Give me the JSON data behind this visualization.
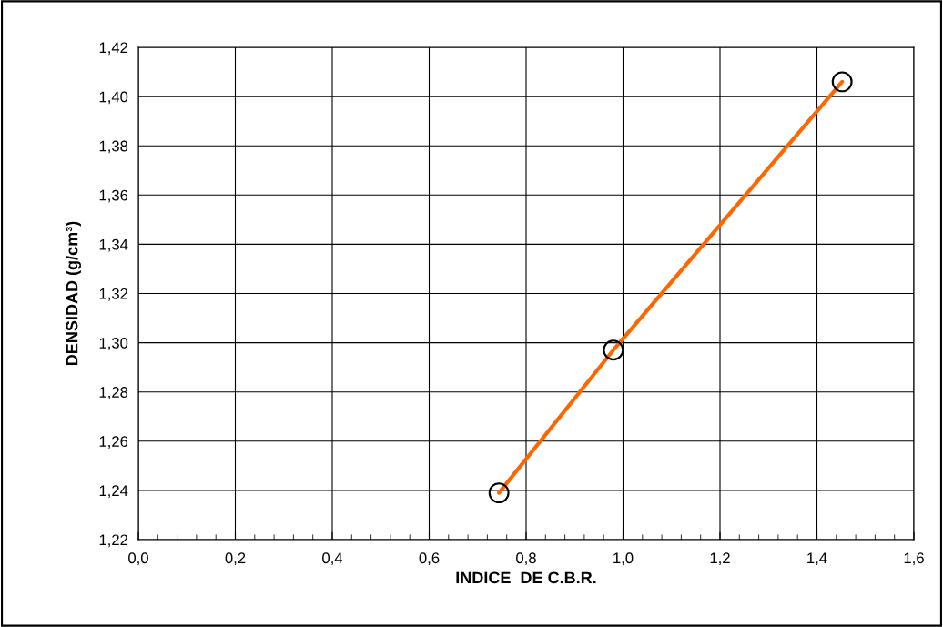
{
  "chart_data": {
    "type": "line",
    "xlabel": "INDICE  DE C.B.R.",
    "ylabel": "DENSIDAD (g/cm³)",
    "x": [
      0.744,
      0.98,
      1.452
    ],
    "series": [
      {
        "color": "#ff6600",
        "values": [
          1.239,
          1.297,
          1.406
        ]
      }
    ],
    "marker": "circle",
    "line_style": "solid",
    "grid": true,
    "legend": false,
    "xlim": [
      0,
      1.6
    ],
    "ylim": [
      1.22,
      1.42
    ],
    "xticks": [
      {
        "value": 0,
        "label": "0,0"
      },
      {
        "value": 0.2,
        "label": "0,2"
      },
      {
        "value": 0.4,
        "label": "0,4"
      },
      {
        "value": 0.6,
        "label": "0,6"
      },
      {
        "value": 0.8,
        "label": "0,8"
      },
      {
        "value": 1.0,
        "label": "1,0"
      },
      {
        "value": 1.2,
        "label": "1,2"
      },
      {
        "value": 1.4,
        "label": "1,4"
      },
      {
        "value": 1.6,
        "label": "1,6"
      }
    ],
    "yticks": [
      {
        "value": 1.22,
        "label": "1,22"
      },
      {
        "value": 1.24,
        "label": "1,24"
      },
      {
        "value": 1.26,
        "label": "1,26"
      },
      {
        "value": 1.28,
        "label": "1,28"
      },
      {
        "value": 1.3,
        "label": "1,30"
      },
      {
        "value": 1.32,
        "label": "1,32"
      },
      {
        "value": 1.34,
        "label": "1,34"
      },
      {
        "value": 1.36,
        "label": "1,36"
      },
      {
        "value": 1.38,
        "label": "1,38"
      },
      {
        "value": 1.4,
        "label": "1,40"
      },
      {
        "value": 1.42,
        "label": "1,42"
      }
    ]
  }
}
